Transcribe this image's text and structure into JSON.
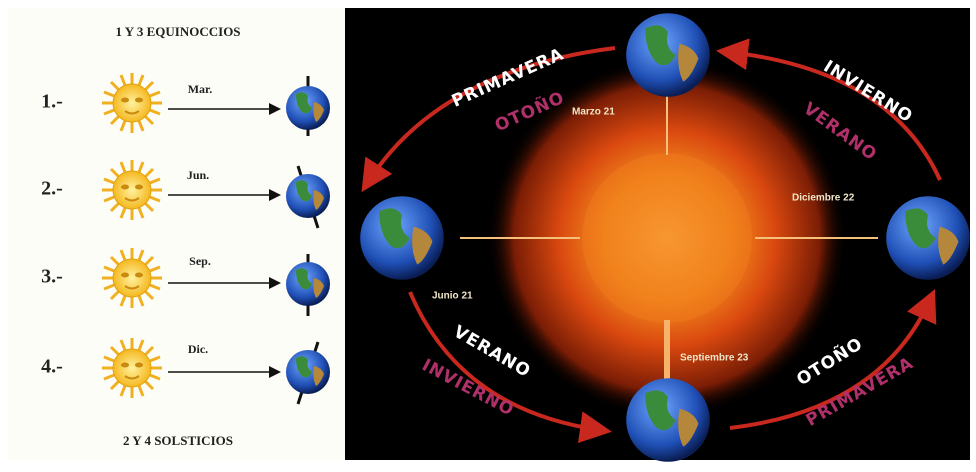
{
  "left_panel": {
    "title": "1 Y 3 EQUINOCCIOS",
    "rows": [
      {
        "number": "1.-",
        "month": "Mar."
      },
      {
        "number": "2.-",
        "month": "Jun."
      },
      {
        "number": "3.-",
        "month": "Sep."
      },
      {
        "number": "4.-",
        "month": "Dic."
      }
    ],
    "footer": "2 Y 4 SOLSTICIOS"
  },
  "right_panel": {
    "seasons": [
      {
        "outer": "PRIMAVERA",
        "inner": "OTOÑO"
      },
      {
        "outer": "INVIERNO",
        "inner": "VERANO"
      },
      {
        "outer": "VERANO",
        "inner": "INVIERNO"
      },
      {
        "outer": "OTOÑO",
        "inner": "PRIMAVERA"
      }
    ],
    "dates": [
      "Marzo 21",
      "Diciembre 22",
      "Junio 21",
      "Septiembre 23"
    ]
  }
}
